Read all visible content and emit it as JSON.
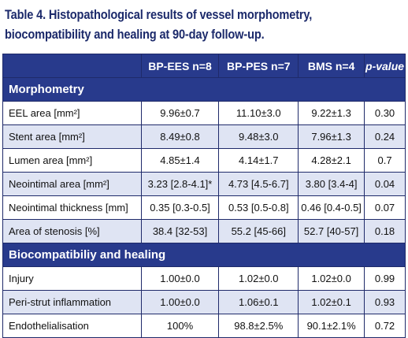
{
  "caption": {
    "line1": "Table 4. Histopathological results of vessel morphometry,",
    "line2": "biocompatibility and healing at 90-day follow-up."
  },
  "columns": [
    "",
    "BP-EES n=8",
    "BP-PES n=7",
    "BMS n=4",
    "p-value"
  ],
  "sections": [
    {
      "title": "Morphometry",
      "rows": [
        {
          "label": "EEL area [mm²]",
          "v1": "9.96±0.7",
          "v2": "11.10±3.0",
          "v3": "9.22±1.3",
          "p": "0.30"
        },
        {
          "label": "Stent area [mm²]",
          "v1": "8.49±0.8",
          "v2": "9.48±3.0",
          "v3": "7.96±1.3",
          "p": "0.24"
        },
        {
          "label": "Lumen area [mm²]",
          "v1": "4.85±1.4",
          "v2": "4.14±1.7",
          "v3": "4.28±2.1",
          "p": "0.7"
        },
        {
          "label": "Neointimal area [mm²]",
          "v1": "3.23 [2.8-4.1]*",
          "v2": "4.73 [4.5-6.7]",
          "v3": "3.80 [3.4-4]",
          "p": "0.04"
        },
        {
          "label": "Neointimal thickness [mm]",
          "v1": "0.35 [0.3-0.5]",
          "v2": "0.53 [0.5-0.8]",
          "v3": "0.46 [0.4-0.5]",
          "p": "0.07"
        },
        {
          "label": "Area of stenosis [%]",
          "v1": "38.4 [32-53]",
          "v2": "55.2 [45-66]",
          "v3": "52.7 [40-57]",
          "p": "0.18"
        }
      ]
    },
    {
      "title": "Biocompatibiliy and healing",
      "rows": [
        {
          "label": "Injury",
          "v1": "1.00±0.0",
          "v2": "1.02±0.0",
          "v3": "1.02±0.0",
          "p": "0.99"
        },
        {
          "label": "Peri-strut inflammation",
          "v1": "1.00±0.0",
          "v2": "1.06±0.1",
          "v3": "1.02±0.1",
          "p": "0.93"
        },
        {
          "label": "Endothelialisation",
          "v1": "100%",
          "v2": "98.8±2.5%",
          "v3": "90.1±2.1%",
          "p": "0.72"
        }
      ]
    }
  ],
  "colors": {
    "header_bg": "#283a8c",
    "stripe": "#dfe4f3",
    "caption": "#1c2a6b"
  }
}
